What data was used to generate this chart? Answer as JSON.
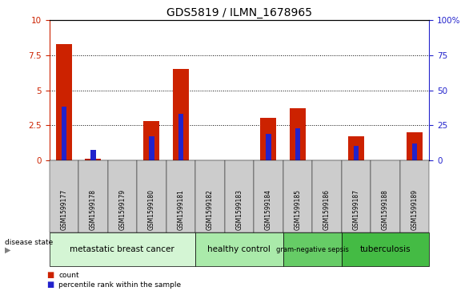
{
  "title": "GDS5819 / ILMN_1678965",
  "samples": [
    "GSM1599177",
    "GSM1599178",
    "GSM1599179",
    "GSM1599180",
    "GSM1599181",
    "GSM1599182",
    "GSM1599183",
    "GSM1599184",
    "GSM1599185",
    "GSM1599186",
    "GSM1599187",
    "GSM1599188",
    "GSM1599189"
  ],
  "count_values": [
    8.3,
    0.1,
    0.0,
    2.8,
    6.5,
    0.0,
    0.0,
    3.0,
    3.7,
    0.0,
    1.7,
    0.0,
    2.0
  ],
  "percentile_values": [
    38.0,
    7.0,
    0.0,
    17.0,
    33.0,
    0.0,
    0.0,
    19.0,
    23.0,
    0.0,
    10.0,
    0.0,
    12.0
  ],
  "count_color": "#cc2200",
  "percentile_color": "#2222cc",
  "ylim_left": [
    0,
    10
  ],
  "ylim_right": [
    0,
    100
  ],
  "yticks_left": [
    0,
    2.5,
    5.0,
    7.5,
    10
  ],
  "yticks_right": [
    0,
    25,
    50,
    75,
    100
  ],
  "ytick_labels_left": [
    "0",
    "2.5",
    "5",
    "7.5",
    "10"
  ],
  "ytick_labels_right": [
    "0",
    "25",
    "50",
    "75",
    "100%"
  ],
  "disease_groups": [
    {
      "label": "metastatic breast cancer",
      "start": 0,
      "end": 5,
      "color": "#d4f5d4"
    },
    {
      "label": "healthy control",
      "start": 5,
      "end": 8,
      "color": "#aaeaaa"
    },
    {
      "label": "gram-negative sepsis",
      "start": 8,
      "end": 10,
      "color": "#66cc66"
    },
    {
      "label": "tuberculosis",
      "start": 10,
      "end": 13,
      "color": "#44bb44"
    }
  ],
  "legend_count_label": "count",
  "legend_percentile_label": "percentile rank within the sample",
  "disease_state_label": "disease state",
  "bar_width": 0.55,
  "blue_bar_width": 0.18,
  "tick_bg_color": "#cccccc",
  "tick_label_color_left": "#cc2200",
  "tick_label_color_right": "#2222cc"
}
